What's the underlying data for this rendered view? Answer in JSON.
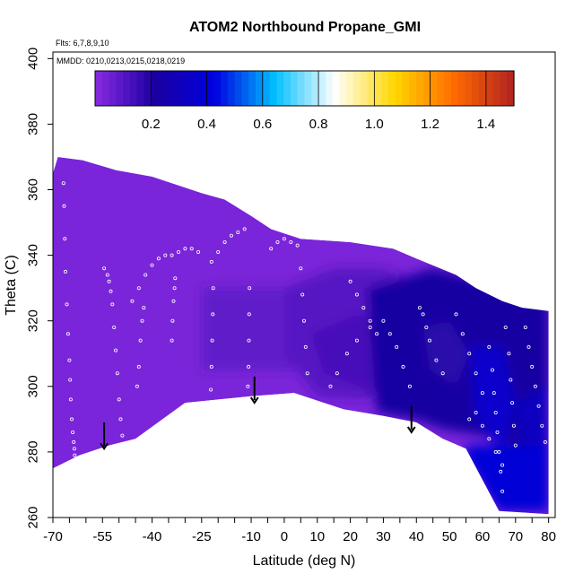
{
  "chart_data": {
    "type": "heatmap",
    "title": "ATOM2 Northbound Propane_GMI",
    "flights_label": "Flts: 6,7,8,9,10",
    "dates_label": "MMDD: 0210,0213,0215,0218,0219",
    "xlabel": "Latitude (deg N)",
    "ylabel": "Theta (C)",
    "xlim": [
      -70,
      82
    ],
    "ylim": [
      260,
      402
    ],
    "x_ticks": [
      -70,
      -55,
      -40,
      -25,
      -10,
      0,
      10,
      20,
      30,
      40,
      50,
      60,
      70,
      80
    ],
    "x_tick_labels": [
      "-70",
      "-55",
      "-40",
      "-25",
      "-10",
      "0",
      "10",
      "20",
      "30",
      "40",
      "50",
      "60",
      "70",
      "80"
    ],
    "x_minor_ticks": [
      -65,
      -60,
      -50,
      -45,
      -35,
      -30,
      -20,
      -15,
      -5,
      5,
      15,
      25,
      35,
      45,
      55,
      65,
      75
    ],
    "y_ticks": [
      260,
      280,
      300,
      320,
      340,
      360,
      380,
      400
    ],
    "y_tick_labels": [
      "260",
      "280",
      "300",
      "320",
      "340",
      "360",
      "380",
      "400"
    ],
    "colorbar": {
      "min": 0.0,
      "max": 1.5,
      "ticks": [
        0.2,
        0.4,
        0.6,
        0.8,
        1.0,
        1.2,
        1.4
      ],
      "tick_labels": [
        "0.2",
        "0.4",
        "0.6",
        "0.8",
        "1.0",
        "1.2",
        "1.4"
      ],
      "colors": [
        "#8a2be2",
        "#1a00a0",
        "#0000e0",
        "#00bfff",
        "#ffffff",
        "#ffd700",
        "#ff6a00",
        "#b22222"
      ]
    },
    "field_top": {
      "lat": [
        -70,
        -70,
        -68.5,
        -61,
        -51,
        -40,
        -25,
        -18,
        -10,
        -4,
        5,
        20,
        33,
        40,
        52,
        58,
        66,
        72,
        80,
        80
      ],
      "theta": [
        348,
        365,
        370,
        369,
        366,
        364,
        359,
        357,
        352,
        348,
        345,
        344,
        342,
        339,
        334,
        330,
        326,
        324,
        323,
        318
      ]
    },
    "field_bottom": {
      "lat": [
        80,
        80,
        65,
        55,
        48,
        40,
        30,
        18,
        3,
        -10,
        -30,
        -45,
        -53,
        -62,
        -70
      ],
      "theta": [
        281,
        261,
        262,
        281,
        284,
        289,
        291,
        293,
        298,
        297,
        295,
        284,
        282,
        279,
        275
      ]
    },
    "regions": [
      {
        "lat": [
          -25,
          5,
          5,
          -25
        ],
        "theta": [
          305,
          305,
          330,
          330
        ],
        "value": 0.08
      },
      {
        "lat": [
          0,
          15,
          30,
          40,
          40,
          30,
          10,
          0
        ],
        "theta": [
          330,
          336,
          336,
          332,
          300,
          296,
          297,
          310
        ],
        "value": 0.1
      },
      {
        "lat": [
          8,
          22,
          35,
          42,
          40,
          28,
          12
        ],
        "theta": [
          316,
          322,
          318,
          310,
          300,
          298,
          304
        ],
        "value": 0.13
      },
      {
        "lat": [
          25,
          45,
          60,
          80,
          80,
          72,
          60,
          48,
          40,
          28
        ],
        "theta": [
          330,
          336,
          332,
          325,
          281,
          281,
          285,
          287,
          290,
          292
        ],
        "value": 0.22
      },
      {
        "lat": [
          42,
          50,
          56,
          52,
          44
        ],
        "theta": [
          318,
          320,
          310,
          300,
          305
        ],
        "value": 0.18
      },
      {
        "lat": [
          55,
          62,
          80,
          80,
          65,
          55
        ],
        "theta": [
          282,
          282,
          282,
          262,
          262,
          278
        ],
        "value": 0.4
      },
      {
        "lat": [
          56,
          66,
          70,
          66,
          58
        ],
        "theta": [
          312,
          312,
          295,
          280,
          290
        ],
        "value": 0.36
      },
      {
        "lat": [
          70,
          80,
          80,
          72
        ],
        "theta": [
          295,
          300,
          282,
          282
        ],
        "value": 0.32
      }
    ],
    "flight_tracks": [
      {
        "lat": [
          -66.8,
          -66.6,
          -66.4,
          -66.2,
          -65.8,
          -65.4,
          -65,
          -64.8,
          -64.6,
          -64.3,
          -64,
          -63.7,
          -63.5,
          -63.4
        ],
        "theta": [
          362,
          355,
          345,
          335,
          325,
          316,
          308,
          302,
          296,
          290,
          286,
          283,
          281,
          279
        ]
      },
      {
        "lat": [
          -54.5,
          -53.5,
          -53,
          -52.5,
          -52,
          -51.5,
          -51,
          -50.5,
          -50,
          -49.5,
          -49
        ],
        "theta": [
          336,
          334,
          332,
          329,
          325,
          318,
          311,
          304,
          296,
          290,
          285
        ]
      },
      {
        "lat": [
          -46,
          -44,
          -42,
          -40,
          -38,
          -36,
          -34,
          -32,
          -30,
          -28,
          -26
        ],
        "theta": [
          326,
          330,
          334,
          337,
          339,
          340,
          340,
          341,
          342,
          342,
          341
        ]
      },
      {
        "lat": [
          -44.5,
          -44,
          -43.5,
          -43,
          -42.5
        ],
        "theta": [
          300,
          306,
          314,
          320,
          324
        ]
      },
      {
        "lat": [
          -34,
          -33.8,
          -33.5,
          -33.2,
          -33
        ],
        "theta": [
          314,
          320,
          326,
          330,
          333
        ]
      },
      {
        "lat": [
          -22,
          -20,
          -18,
          -16,
          -14,
          -12
        ],
        "theta": [
          338,
          341,
          344,
          346,
          347,
          348
        ]
      },
      {
        "lat": [
          -21.5,
          -21.6,
          -21.8,
          -22,
          -22.2
        ],
        "theta": [
          330,
          322,
          314,
          306,
          299
        ]
      },
      {
        "lat": [
          -10.5,
          -10.6,
          -10.7,
          -10.8,
          -11
        ],
        "theta": [
          330,
          322,
          314,
          306,
          300
        ]
      },
      {
        "lat": [
          -4,
          -2,
          0,
          2,
          4
        ],
        "theta": [
          342,
          344,
          345,
          344,
          343
        ]
      },
      {
        "lat": [
          5,
          5.5,
          6,
          6.5,
          7
        ],
        "theta": [
          336,
          328,
          320,
          312,
          304
        ]
      },
      {
        "lat": [
          14,
          16,
          19,
          22,
          26
        ],
        "theta": [
          300,
          304,
          310,
          314,
          318
        ]
      },
      {
        "lat": [
          20,
          22,
          24,
          26,
          28
        ],
        "theta": [
          332,
          328,
          324,
          320,
          316
        ]
      },
      {
        "lat": [
          30,
          32,
          34,
          36,
          38
        ],
        "theta": [
          320,
          316,
          312,
          306,
          300
        ]
      },
      {
        "lat": [
          41,
          42,
          43,
          44,
          46,
          48
        ],
        "theta": [
          324,
          322,
          318,
          314,
          308,
          304
        ]
      },
      {
        "lat": [
          52,
          54,
          56,
          58,
          60
        ],
        "theta": [
          322,
          316,
          310,
          304,
          298
        ]
      },
      {
        "lat": [
          62,
          63,
          63.5,
          64,
          64.5,
          65,
          65.5,
          66
        ],
        "theta": [
          312,
          305,
          298,
          292,
          286,
          280,
          274,
          268
        ]
      },
      {
        "lat": [
          67,
          68,
          68.5,
          69,
          69.5,
          70
        ],
        "theta": [
          318,
          310,
          302,
          295,
          288,
          282
        ]
      },
      {
        "lat": [
          73,
          74,
          75,
          76,
          77,
          78,
          79
        ],
        "theta": [
          318,
          312,
          306,
          300,
          294,
          288,
          283
        ]
      },
      {
        "lat": [
          56,
          58,
          60,
          62,
          64,
          66
        ],
        "theta": [
          290,
          292,
          288,
          284,
          280,
          276
        ]
      }
    ],
    "arrows": [
      {
        "lat": -54.5,
        "theta_start": 289,
        "theta_end": 281
      },
      {
        "lat": -9.0,
        "theta_start": 303,
        "theta_end": 295
      },
      {
        "lat": 38.5,
        "theta_start": 294,
        "theta_end": 286
      }
    ]
  }
}
